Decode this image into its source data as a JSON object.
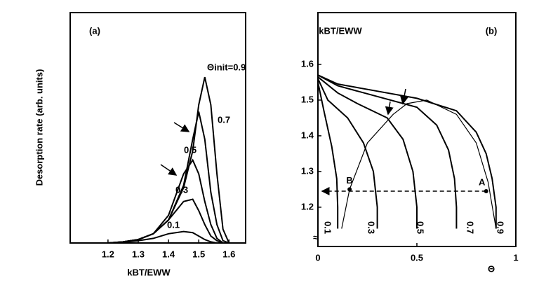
{
  "chart_data": [
    {
      "type": "line",
      "panel_label": "(a)",
      "x_label": "kBT/EWW",
      "y_label": "Desorption rate (arb. units)",
      "xlim": [
        1.075,
        1.655
      ],
      "ylim": [
        0,
        1
      ],
      "xticks": [
        1.2,
        1.3,
        1.4,
        1.5,
        1.6
      ],
      "series": [
        {
          "name": "Θinit=0.9",
          "color": "#000000",
          "x": [
            1.2,
            1.25,
            1.3,
            1.35,
            1.4,
            1.45,
            1.48,
            1.5,
            1.52,
            1.54,
            1.56,
            1.58,
            1.6
          ],
          "values": [
            0,
            0.005,
            0.015,
            0.04,
            0.1,
            0.24,
            0.4,
            0.6,
            0.72,
            0.6,
            0.3,
            0.06,
            0
          ]
        },
        {
          "name": "0.7",
          "color": "#000000",
          "x": [
            1.2,
            1.25,
            1.3,
            1.35,
            1.4,
            1.45,
            1.48,
            1.5,
            1.52,
            1.54,
            1.56,
            1.58,
            1.6
          ],
          "values": [
            0,
            0.005,
            0.015,
            0.04,
            0.1,
            0.25,
            0.45,
            0.57,
            0.45,
            0.22,
            0.08,
            0.01,
            0
          ]
        },
        {
          "name": "0.5",
          "color": "#000000",
          "x": [
            1.2,
            1.25,
            1.3,
            1.35,
            1.4,
            1.45,
            1.48,
            1.5,
            1.52,
            1.54,
            1.56,
            1.58,
            1.6
          ],
          "values": [
            0,
            0.005,
            0.015,
            0.04,
            0.12,
            0.3,
            0.36,
            0.3,
            0.18,
            0.08,
            0.02,
            0,
            0
          ]
        },
        {
          "name": "0.3",
          "color": "#000000",
          "x": [
            1.2,
            1.25,
            1.3,
            1.35,
            1.4,
            1.45,
            1.48,
            1.5,
            1.52,
            1.54,
            1.56,
            1.58,
            1.6
          ],
          "values": [
            0,
            0.005,
            0.015,
            0.04,
            0.1,
            0.18,
            0.19,
            0.14,
            0.08,
            0.03,
            0.01,
            0,
            0
          ]
        },
        {
          "name": "0.1",
          "color": "#000000",
          "x": [
            1.2,
            1.25,
            1.3,
            1.35,
            1.4,
            1.45,
            1.48,
            1.5,
            1.52,
            1.54,
            1.56,
            1.58,
            1.6
          ],
          "values": [
            0,
            0.003,
            0.01,
            0.02,
            0.04,
            0.05,
            0.045,
            0.03,
            0.015,
            0.005,
            0,
            0,
            0
          ]
        }
      ]
    },
    {
      "type": "line",
      "panel_label": "(b)",
      "x_label": "Θ",
      "y_label": "kBT/EWW",
      "xlim": [
        0,
        1
      ],
      "ylim": [
        1.09,
        1.745
      ],
      "xticks": [
        0,
        0.5,
        1
      ],
      "yticks": [
        1.2,
        1.3,
        1.4,
        1.5,
        1.6
      ],
      "series": [
        {
          "name": "0.1",
          "color": "#000000",
          "x": [
            0,
            0.03,
            0.07,
            0.095,
            0.1,
            0.1
          ],
          "values": [
            1.55,
            1.47,
            1.37,
            1.28,
            1.2,
            1.14
          ]
        },
        {
          "name": "0.3",
          "color": "#000000",
          "x": [
            0,
            0.05,
            0.15,
            0.23,
            0.28,
            0.3,
            0.3
          ],
          "values": [
            1.56,
            1.5,
            1.45,
            1.38,
            1.3,
            1.2,
            1.14
          ]
        },
        {
          "name": "0.5",
          "color": "#000000",
          "x": [
            0,
            0.1,
            0.2,
            0.35,
            0.43,
            0.48,
            0.5,
            0.5
          ],
          "values": [
            1.565,
            1.52,
            1.49,
            1.45,
            1.39,
            1.3,
            1.2,
            1.14
          ]
        },
        {
          "name": "0.7",
          "color": "#000000",
          "x": [
            0,
            0.1,
            0.3,
            0.5,
            0.6,
            0.66,
            0.69,
            0.7,
            0.7
          ],
          "values": [
            1.57,
            1.54,
            1.51,
            1.48,
            1.43,
            1.36,
            1.28,
            1.2,
            1.14
          ]
        },
        {
          "name": "0.9",
          "color": "#000000",
          "x": [
            0,
            0.1,
            0.3,
            0.5,
            0.7,
            0.8,
            0.85,
            0.88,
            0.9,
            0.9
          ],
          "values": [
            1.57,
            1.545,
            1.525,
            1.505,
            1.47,
            1.41,
            1.35,
            1.28,
            1.2,
            1.14
          ]
        },
        {
          "color": "#000000",
          "x": [
            0.12,
            0.16,
            0.25,
            0.38,
            0.45,
            0.55,
            0.7,
            0.8,
            0.86,
            0.9
          ],
          "values": [
            1.14,
            1.25,
            1.38,
            1.46,
            1.49,
            1.5,
            1.46,
            1.38,
            1.27,
            1.14
          ]
        }
      ],
      "points": [
        {
          "label": "B",
          "x": 0.16,
          "y": 1.25
        },
        {
          "label": "A",
          "x": 0.85,
          "y": 1.245
        }
      ]
    }
  ]
}
